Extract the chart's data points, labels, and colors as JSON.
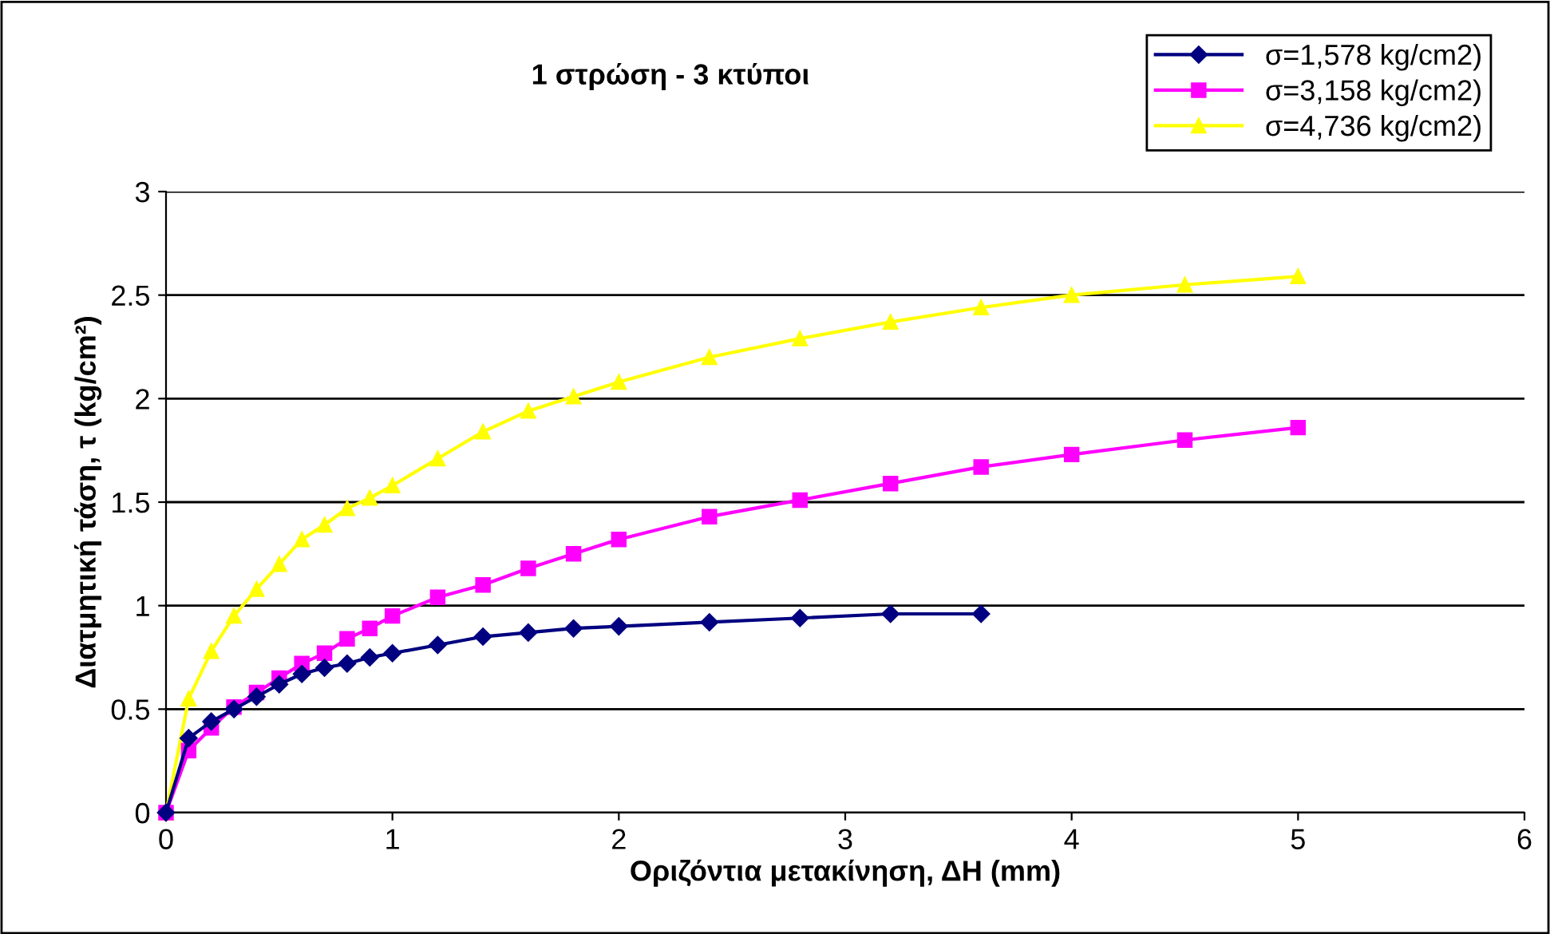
{
  "chart_data": {
    "type": "line",
    "title": "1 στρώση - 3 κτύποι",
    "xlabel": "Οριζόντια μετακίνηση, ΔΗ (mm)",
    "ylabel": "Διατμητική τάση, τ (kg/cm²)",
    "xlim": [
      0,
      6
    ],
    "xticks": [
      0,
      1,
      2,
      3,
      4,
      5,
      6
    ],
    "ylim": [
      0,
      3
    ],
    "yticks": [
      0,
      0.5,
      1,
      1.5,
      2,
      2.5,
      3
    ],
    "grid": "y",
    "legend": "top right",
    "series": [
      {
        "name": "σ=1,578 kg/cm2)",
        "color": "#000080",
        "marker": "diamond",
        "x": [
          0,
          0.1,
          0.2,
          0.3,
          0.4,
          0.5,
          0.6,
          0.7,
          0.8,
          0.9,
          1.0,
          1.2,
          1.4,
          1.6,
          1.8,
          2.0,
          2.4,
          2.8,
          3.2,
          3.6
        ],
        "values": [
          0,
          0.36,
          0.44,
          0.5,
          0.56,
          0.62,
          0.67,
          0.7,
          0.72,
          0.75,
          0.77,
          0.81,
          0.85,
          0.87,
          0.89,
          0.9,
          0.92,
          0.94,
          0.96,
          0.96
        ]
      },
      {
        "name": "σ=3,158 kg/cm2)",
        "color": "#ff00ff",
        "marker": "square",
        "x": [
          0,
          0.1,
          0.2,
          0.3,
          0.4,
          0.5,
          0.6,
          0.7,
          0.8,
          0.9,
          1.0,
          1.2,
          1.4,
          1.6,
          1.8,
          2.0,
          2.4,
          2.8,
          3.2,
          3.6,
          4.0,
          4.5,
          5.0
        ],
        "values": [
          0,
          0.3,
          0.41,
          0.51,
          0.58,
          0.65,
          0.72,
          0.77,
          0.84,
          0.89,
          0.95,
          1.04,
          1.1,
          1.18,
          1.25,
          1.32,
          1.43,
          1.51,
          1.59,
          1.67,
          1.73,
          1.8,
          1.86
        ]
      },
      {
        "name": "σ=4,736 kg/cm2)",
        "color": "#ffff00",
        "marker": "triangle",
        "x": [
          0,
          0.1,
          0.2,
          0.3,
          0.4,
          0.5,
          0.6,
          0.7,
          0.8,
          0.9,
          1.0,
          1.2,
          1.4,
          1.6,
          1.8,
          2.0,
          2.4,
          2.8,
          3.2,
          3.6,
          4.0,
          4.5,
          5.0
        ],
        "values": [
          0,
          0.55,
          0.78,
          0.95,
          1.08,
          1.2,
          1.32,
          1.39,
          1.47,
          1.52,
          1.58,
          1.71,
          1.84,
          1.94,
          2.01,
          2.08,
          2.2,
          2.29,
          2.37,
          2.44,
          2.5,
          2.55,
          2.59
        ]
      }
    ]
  }
}
